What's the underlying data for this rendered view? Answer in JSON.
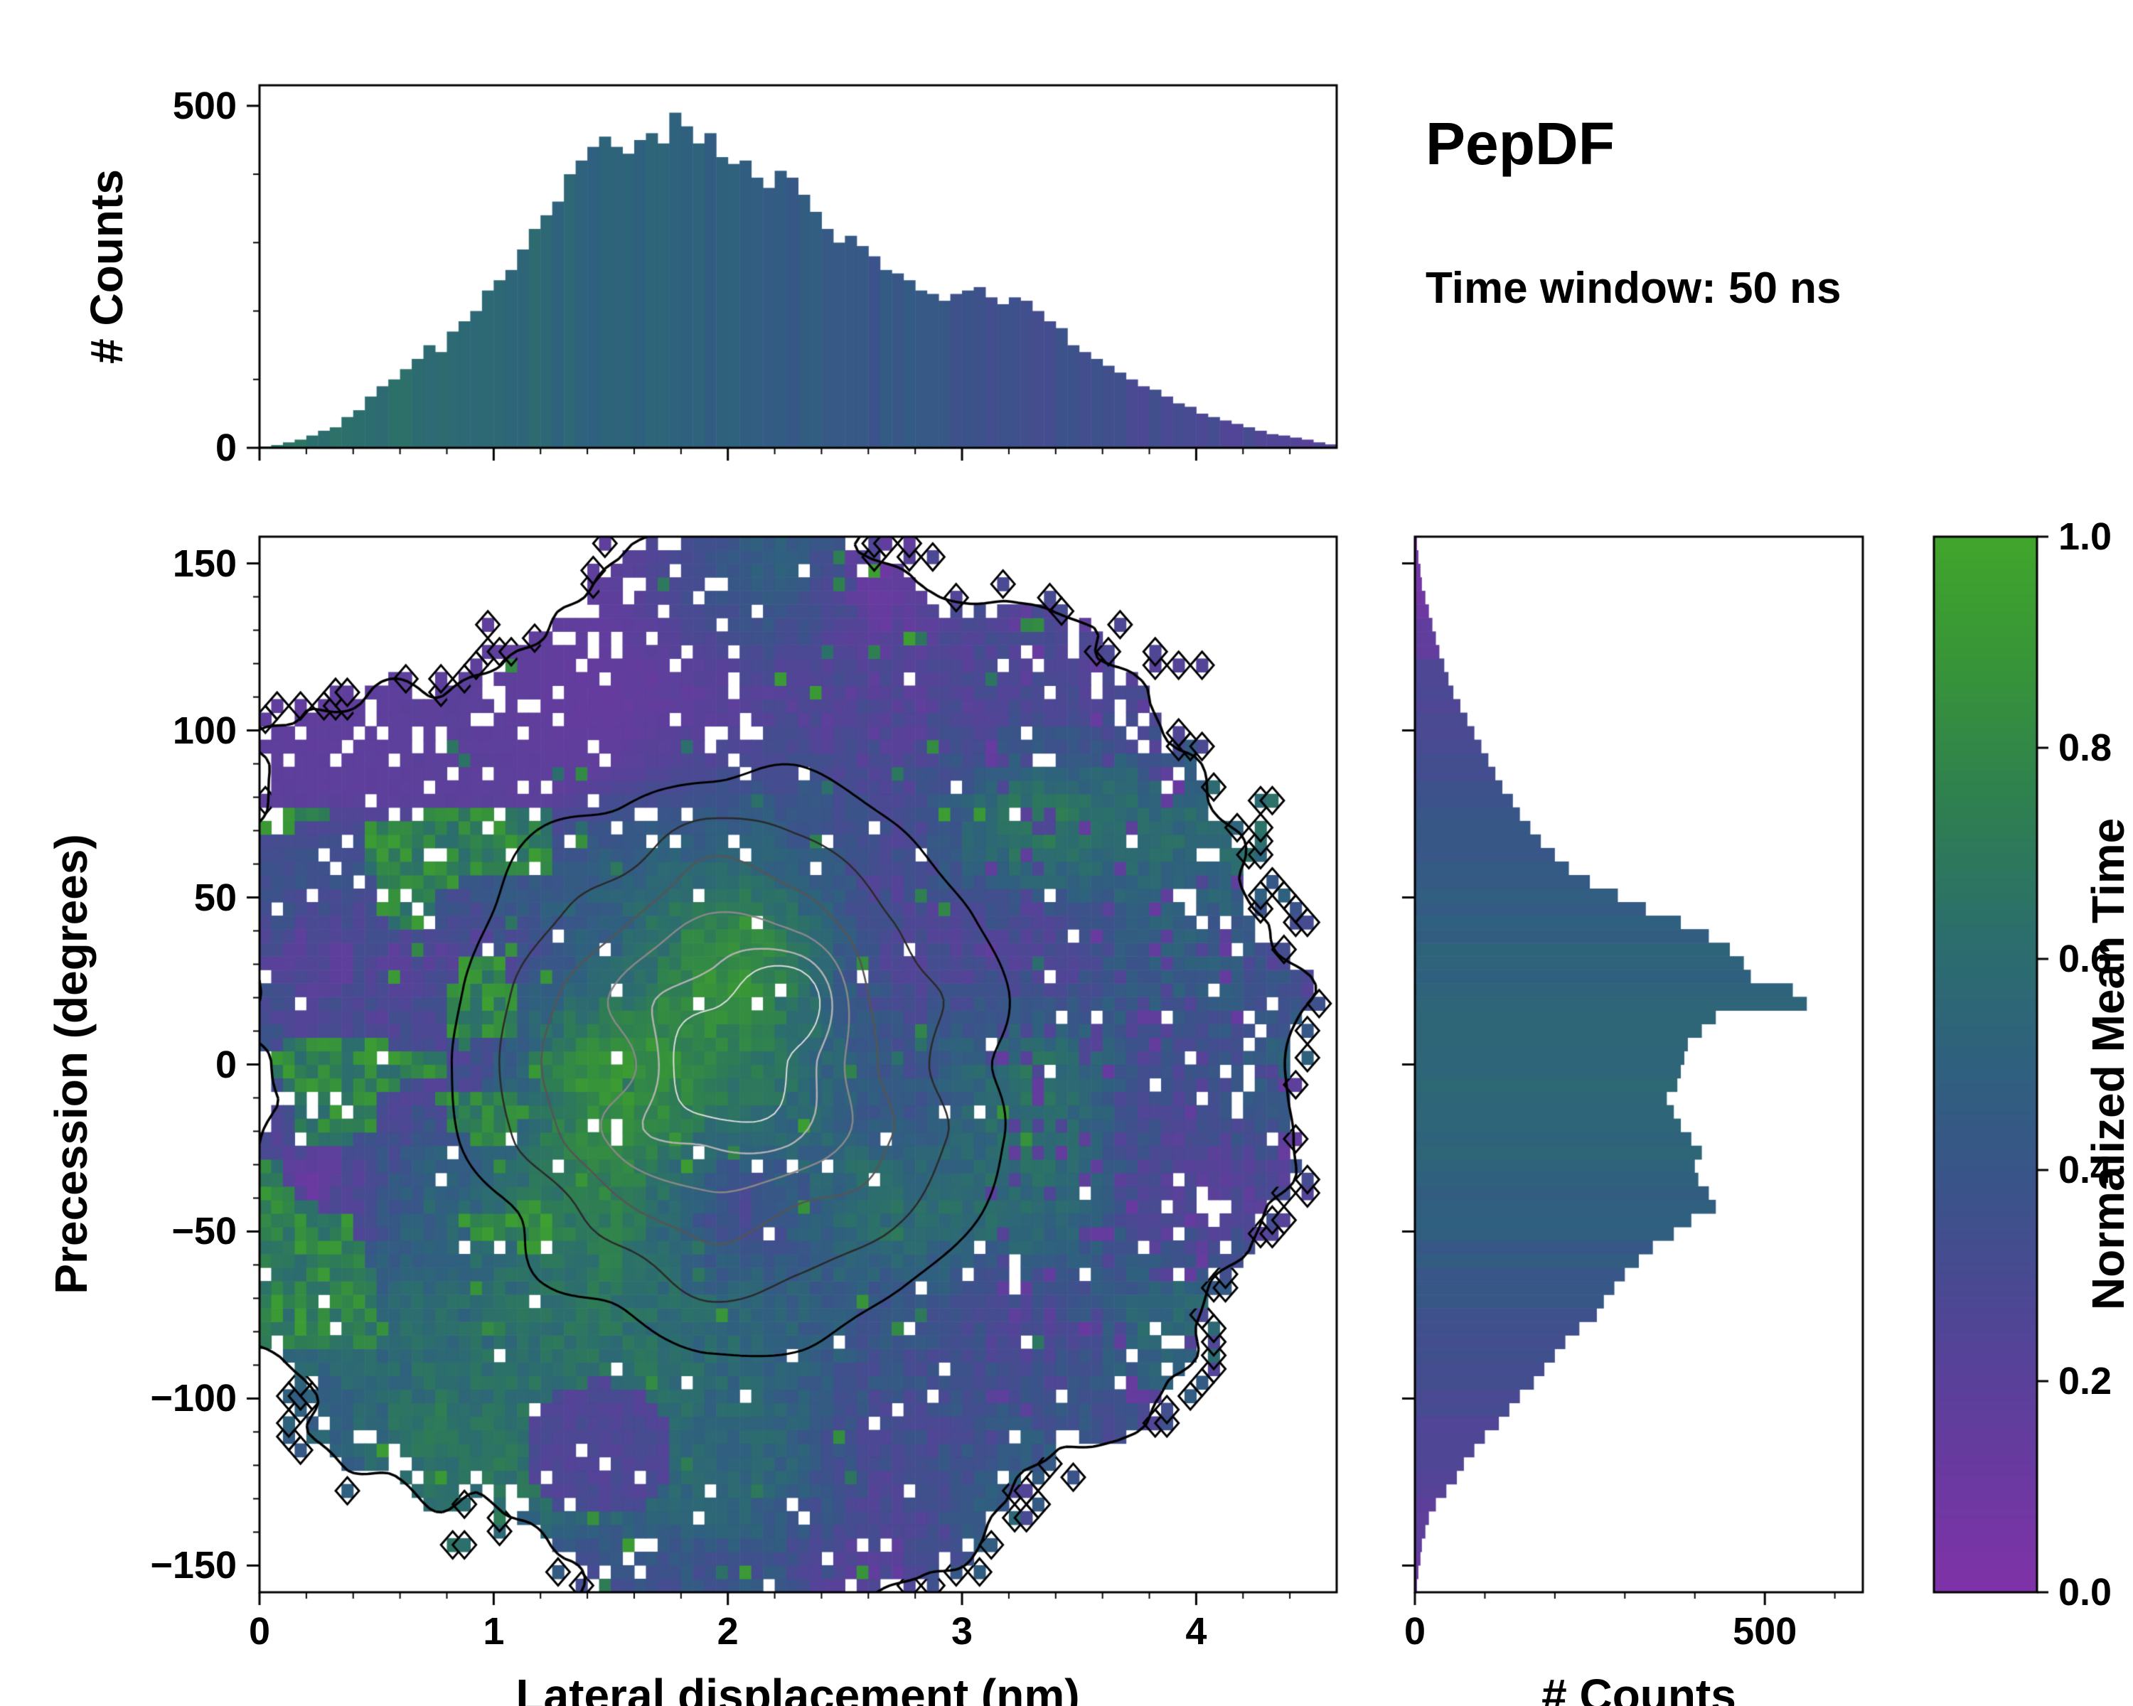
{
  "title": "PepDF",
  "subtitle": "Time window: 50 ns",
  "colormap": {
    "label": "Normalized Mean Time",
    "stops": [
      {
        "t": 0.0,
        "color": "#8032a8"
      },
      {
        "t": 0.12,
        "color": "#693aa0"
      },
      {
        "t": 0.25,
        "color": "#514596"
      },
      {
        "t": 0.38,
        "color": "#3b538a"
      },
      {
        "t": 0.5,
        "color": "#2f617e"
      },
      {
        "t": 0.62,
        "color": "#2c6e6d"
      },
      {
        "t": 0.75,
        "color": "#2f8050"
      },
      {
        "t": 0.88,
        "color": "#389538"
      },
      {
        "t": 1.0,
        "color": "#41a62c"
      }
    ],
    "ticks": {
      "values": [
        0,
        0.2,
        0.4,
        0.6,
        0.8,
        1.0
      ],
      "labels": [
        "0.0",
        "0.2",
        "0.4",
        "0.6",
        "0.8",
        "1.0"
      ]
    }
  },
  "chart_data": [
    {
      "type": "bar",
      "name": "top-histogram",
      "ylabel": "# Counts",
      "xlim": [
        0,
        4.6
      ],
      "ylim": [
        0,
        530
      ],
      "bins": 92,
      "bin_width": 0.05,
      "yticks": {
        "values": [
          0,
          500
        ],
        "labels": [
          "0",
          "500"
        ]
      },
      "bar_color_t": {
        "start": 0.66,
        "end": 0.24
      },
      "values": [
        2,
        4,
        8,
        12,
        18,
        25,
        30,
        45,
        55,
        75,
        90,
        100,
        115,
        130,
        150,
        140,
        170,
        185,
        200,
        230,
        245,
        260,
        290,
        320,
        340,
        360,
        400,
        420,
        440,
        455,
        440,
        430,
        450,
        460,
        445,
        490,
        470,
        445,
        460,
        425,
        415,
        420,
        395,
        380,
        405,
        395,
        370,
        345,
        320,
        300,
        310,
        295,
        280,
        260,
        255,
        245,
        230,
        225,
        215,
        225,
        230,
        235,
        220,
        210,
        220,
        215,
        200,
        185,
        175,
        150,
        140,
        130,
        120,
        110,
        100,
        90,
        85,
        75,
        65,
        60,
        50,
        45,
        40,
        35,
        30,
        25,
        20,
        18,
        15,
        12,
        8,
        5
      ]
    },
    {
      "type": "heatmap",
      "name": "joint-density-map",
      "xlabel": "Lateral displacement (nm)",
      "ylabel": "Precession (degrees)",
      "xlim": [
        0,
        4.6
      ],
      "ylim": [
        -158,
        158
      ],
      "xticks": {
        "values": [
          0,
          1,
          2,
          3,
          4
        ],
        "labels": [
          "0",
          "1",
          "2",
          "3",
          "4"
        ]
      },
      "yticks": {
        "values": [
          -150,
          -100,
          -50,
          0,
          50,
          100,
          150
        ],
        "labels": [
          "−150",
          "−100",
          "−50",
          "0",
          "50",
          "100",
          "150"
        ]
      },
      "minor_step_x": 0.2,
      "minor_step_y": 10,
      "color_variable": "Normalized Mean Time",
      "value_range": [
        0,
        1
      ],
      "grid": [
        92,
        78
      ],
      "procedural": {
        "seed": 7,
        "center": [
          2.2,
          -2
        ],
        "radius_x": 2.42,
        "radius_y": 158,
        "edge_noise": 0.1,
        "hole_fraction": 0.03,
        "regions": [
          {
            "name": "low-time-purple",
            "where": "upper-left (x<2.3 nm, y>50 deg)",
            "value": 0.14
          },
          {
            "name": "high-time-green",
            "where": "left edge (x<1.25 nm, |y|<80 deg)",
            "value": 0.75
          },
          {
            "name": "mid-time-blue",
            "where": "bulk of distribution",
            "value": 0.45
          },
          {
            "name": "elevated-center",
            "where": "x~1.95 nm, y~8 deg",
            "value": 0.65
          },
          {
            "name": "scattered-purple",
            "where": "right edge x>3.1 nm",
            "value": 0.2
          }
        ]
      },
      "contours": {
        "edge": {
          "level": 0.0,
          "color": "#000000",
          "width": 3.5
        },
        "levels": [
          {
            "level": 0.16,
            "color": "#000000",
            "width": 3
          },
          {
            "level": 0.32,
            "color": "#2a2a2a",
            "width": 2.5
          },
          {
            "level": 0.5,
            "color": "#555555",
            "width": 2.5
          },
          {
            "level": 0.66,
            "color": "#888888",
            "width": 2.5
          },
          {
            "level": 0.8,
            "color": "#b2b2b2",
            "width": 2.5
          },
          {
            "level": 0.9,
            "color": "#dddddd",
            "width": 2
          }
        ]
      }
    },
    {
      "type": "bar",
      "name": "right-histogram",
      "xlabel": "# Counts",
      "xlim": [
        0,
        640
      ],
      "ylim": [
        -158,
        158
      ],
      "bins": 78,
      "bin_width": 4.051,
      "first_bin_at": -158,
      "xticks": {
        "values": [
          0,
          500
        ],
        "labels": [
          "0",
          "500"
        ]
      },
      "bar_color_t": {
        "mid": 0.56,
        "edge": 0.1
      },
      "values": [
        3,
        5,
        8,
        10,
        15,
        20,
        30,
        45,
        60,
        70,
        85,
        100,
        120,
        135,
        150,
        170,
        185,
        200,
        215,
        235,
        260,
        270,
        285,
        300,
        320,
        340,
        370,
        395,
        430,
        420,
        405,
        400,
        410,
        395,
        380,
        370,
        360,
        375,
        380,
        385,
        390,
        410,
        430,
        560,
        540,
        480,
        470,
        450,
        420,
        380,
        330,
        290,
        250,
        220,
        200,
        180,
        165,
        150,
        140,
        125,
        115,
        105,
        95,
        85,
        75,
        65,
        55,
        48,
        42,
        35,
        30,
        25,
        20,
        15,
        10,
        8,
        5,
        3
      ]
    }
  ]
}
